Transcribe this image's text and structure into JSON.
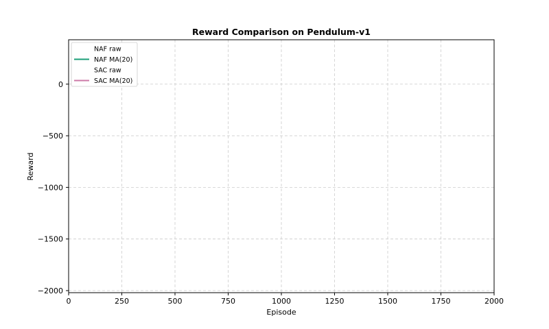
{
  "chart_data": {
    "type": "line",
    "title": "Reward Comparison on Pendulum-v1",
    "xlabel": "Episode",
    "ylabel": "Reward",
    "xlim": [
      0,
      2000
    ],
    "ylim": [
      -2020,
      430
    ],
    "xticks": [
      0,
      250,
      500,
      750,
      1000,
      1250,
      1500,
      1750,
      2000
    ],
    "xtick_labels": [
      "0",
      "250",
      "500",
      "750",
      "1000",
      "1250",
      "1500",
      "1750",
      "2000"
    ],
    "yticks": [
      0,
      -500,
      -1000,
      -1500,
      -2000
    ],
    "ytick_labels": [
      "0",
      "−500",
      "−1000",
      "−1500",
      "−2000"
    ],
    "grid": true,
    "legend_position": "top-left",
    "series": [
      {
        "name": "NAF raw",
        "color": "#ffffff",
        "style": "solid",
        "values": []
      },
      {
        "name": "NAF MA(20)",
        "color": "#1a9e77",
        "style": "solid",
        "values": []
      },
      {
        "name": "SAC raw",
        "color": "#ffffff",
        "style": "solid",
        "values": []
      },
      {
        "name": "SAC MA(20)",
        "color": "#cc79a7",
        "style": "solid",
        "values": []
      }
    ]
  }
}
